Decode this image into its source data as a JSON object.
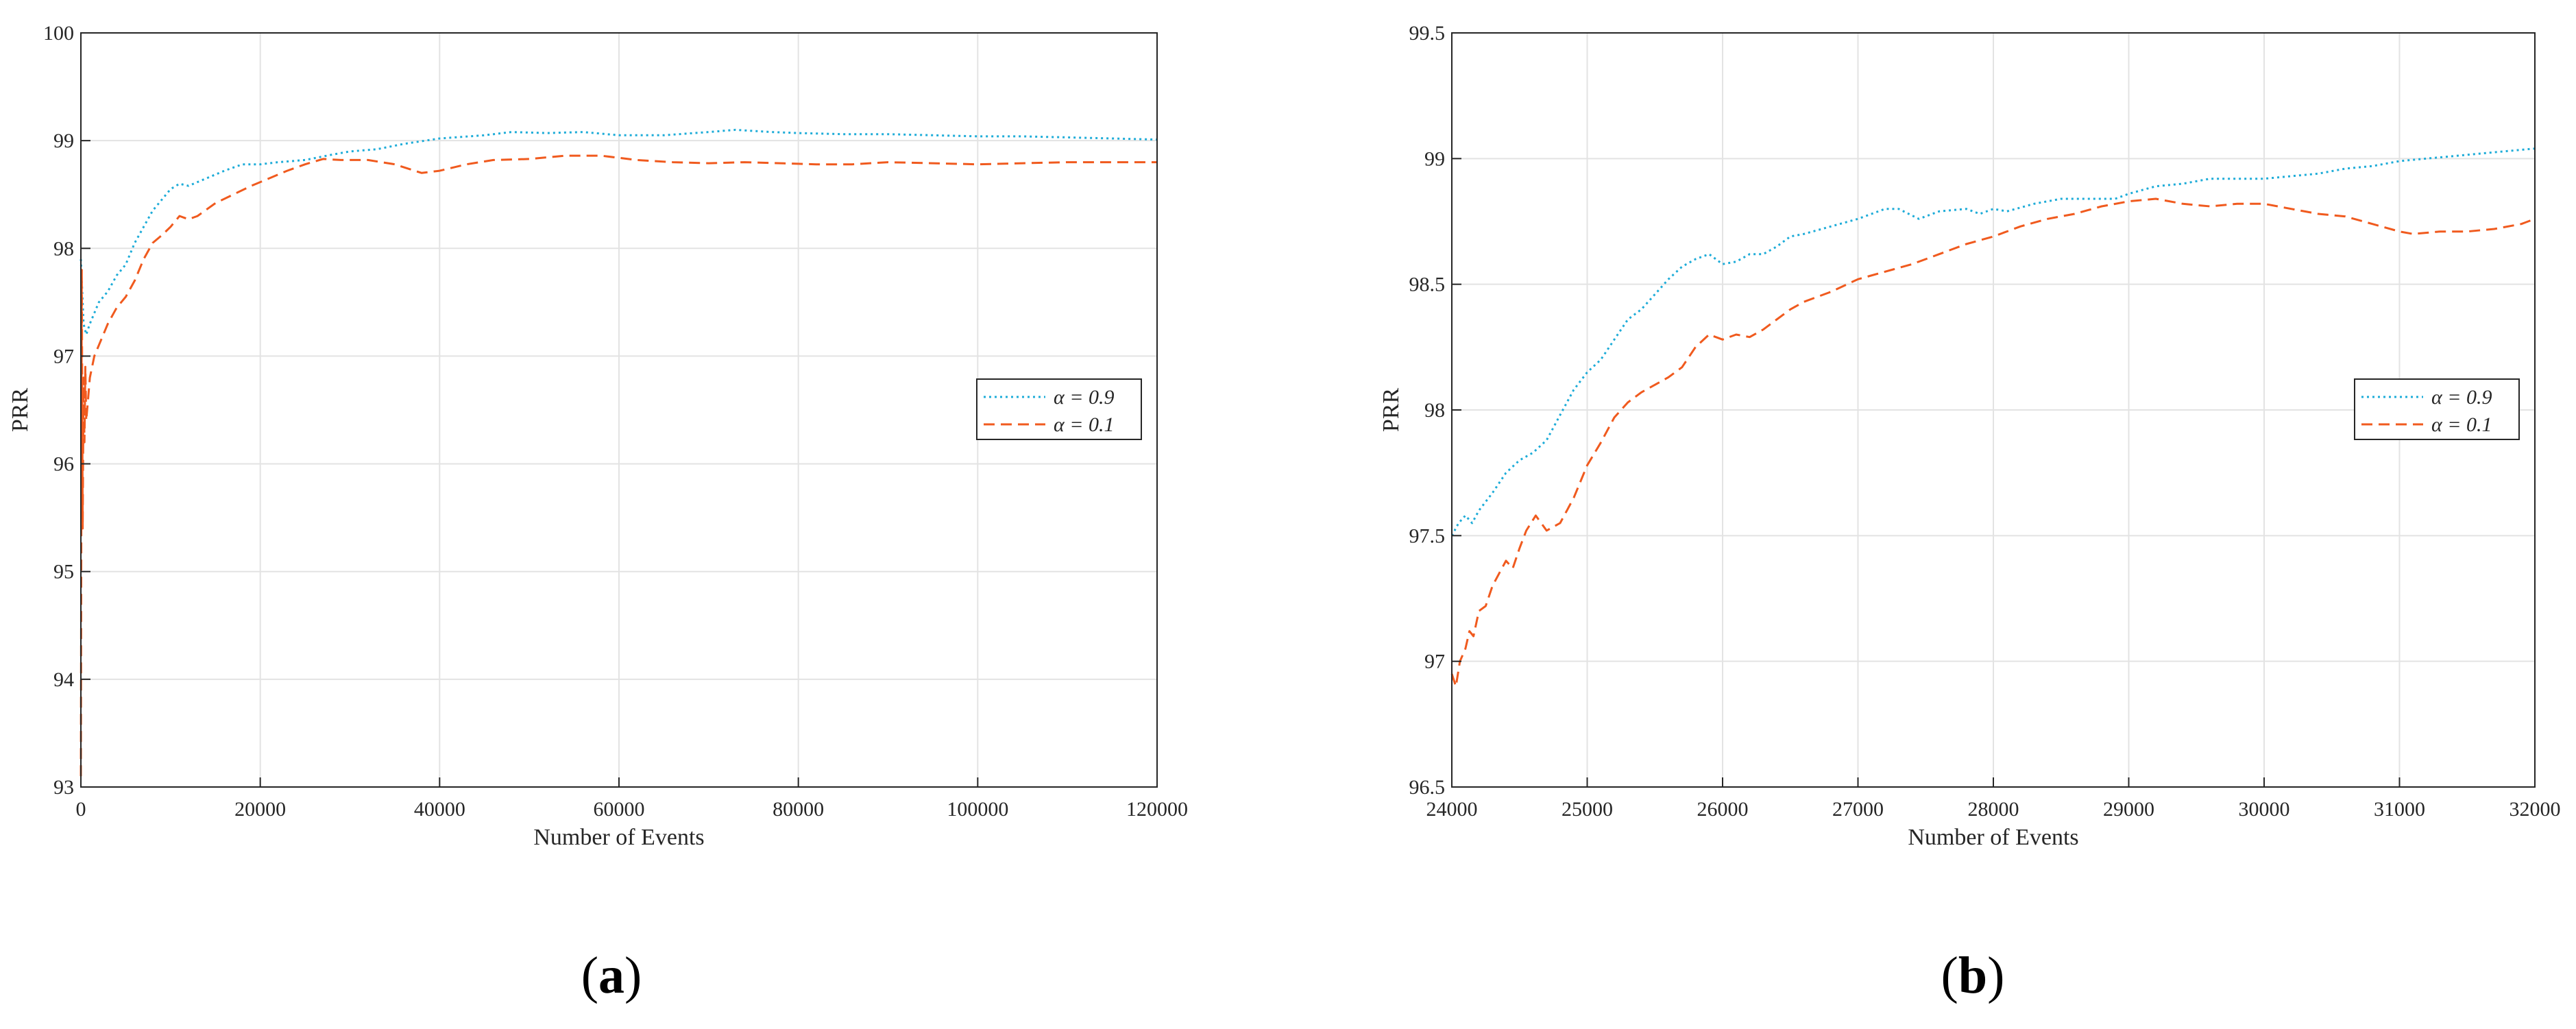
{
  "chart_data": [
    {
      "type": "line",
      "panel_label": "a",
      "xlabel": "Number of Events",
      "ylabel": "PRR",
      "xlim": [
        0,
        120000
      ],
      "ylim": [
        93,
        100
      ],
      "xticks": [
        0,
        20000,
        40000,
        60000,
        80000,
        100000,
        120000
      ],
      "yticks": [
        93,
        94,
        95,
        96,
        97,
        98,
        99,
        100
      ],
      "grid": true,
      "legend_position": "right",
      "series": [
        {
          "name": "α = 0.9",
          "color": "#1eacd8",
          "style": "dotted",
          "points": [
            [
              0,
              97.9
            ],
            [
              300,
              97.3
            ],
            [
              600,
              97.2
            ],
            [
              1000,
              97.3
            ],
            [
              2000,
              97.5
            ],
            [
              3000,
              97.6
            ],
            [
              4000,
              97.75
            ],
            [
              5000,
              97.85
            ],
            [
              6000,
              98.05
            ],
            [
              7000,
              98.2
            ],
            [
              8000,
              98.35
            ],
            [
              9000,
              98.45
            ],
            [
              10000,
              98.55
            ],
            [
              11000,
              98.6
            ],
            [
              12000,
              98.58
            ],
            [
              14000,
              98.65
            ],
            [
              16000,
              98.72
            ],
            [
              18000,
              98.78
            ],
            [
              20000,
              98.78
            ],
            [
              22000,
              98.8
            ],
            [
              25000,
              98.82
            ],
            [
              28000,
              98.87
            ],
            [
              30000,
              98.9
            ],
            [
              33000,
              98.92
            ],
            [
              36000,
              98.97
            ],
            [
              40000,
              99.02
            ],
            [
              45000,
              99.05
            ],
            [
              48000,
              99.08
            ],
            [
              52000,
              99.07
            ],
            [
              56000,
              99.08
            ],
            [
              60000,
              99.05
            ],
            [
              65000,
              99.05
            ],
            [
              70000,
              99.08
            ],
            [
              73000,
              99.1
            ],
            [
              77000,
              99.08
            ],
            [
              80000,
              99.07
            ],
            [
              85000,
              99.06
            ],
            [
              90000,
              99.06
            ],
            [
              95000,
              99.05
            ],
            [
              100000,
              99.04
            ],
            [
              105000,
              99.04
            ],
            [
              110000,
              99.03
            ],
            [
              115000,
              99.02
            ],
            [
              120000,
              99.01
            ]
          ]
        },
        {
          "name": "α = 0.1",
          "color": "#f05a1e",
          "style": "dashed",
          "points": [
            [
              0,
              93.1
            ],
            [
              100,
              97.8
            ],
            [
              200,
              95.4
            ],
            [
              300,
              96.8
            ],
            [
              400,
              96.2
            ],
            [
              500,
              96.9
            ],
            [
              600,
              96.4
            ],
            [
              800,
              96.6
            ],
            [
              1000,
              96.8
            ],
            [
              1500,
              97.0
            ],
            [
              2000,
              97.1
            ],
            [
              3000,
              97.3
            ],
            [
              4000,
              97.45
            ],
            [
              5000,
              97.55
            ],
            [
              6000,
              97.7
            ],
            [
              7000,
              97.9
            ],
            [
              8000,
              98.05
            ],
            [
              9000,
              98.12
            ],
            [
              10000,
              98.2
            ],
            [
              11000,
              98.3
            ],
            [
              12000,
              98.27
            ],
            [
              13000,
              98.3
            ],
            [
              15000,
              98.42
            ],
            [
              17000,
              98.5
            ],
            [
              19000,
              98.58
            ],
            [
              21000,
              98.65
            ],
            [
              23000,
              98.72
            ],
            [
              25000,
              98.78
            ],
            [
              27000,
              98.83
            ],
            [
              29000,
              98.82
            ],
            [
              32000,
              98.82
            ],
            [
              35000,
              98.78
            ],
            [
              38000,
              98.7
            ],
            [
              40000,
              98.72
            ],
            [
              43000,
              98.78
            ],
            [
              46000,
              98.82
            ],
            [
              50000,
              98.83
            ],
            [
              54000,
              98.86
            ],
            [
              58000,
              98.86
            ],
            [
              62000,
              98.82
            ],
            [
              66000,
              98.8
            ],
            [
              70000,
              98.79
            ],
            [
              74000,
              98.8
            ],
            [
              78000,
              98.79
            ],
            [
              82000,
              98.78
            ],
            [
              86000,
              98.78
            ],
            [
              90000,
              98.8
            ],
            [
              95000,
              98.79
            ],
            [
              100000,
              98.78
            ],
            [
              105000,
              98.79
            ],
            [
              110000,
              98.8
            ],
            [
              115000,
              98.8
            ],
            [
              120000,
              98.8
            ]
          ]
        }
      ]
    },
    {
      "type": "line",
      "panel_label": "b",
      "xlabel": "Number of Events",
      "ylabel": "PRR",
      "xlim": [
        24000,
        32000
      ],
      "ylim": [
        96.5,
        99.5
      ],
      "xticks": [
        24000,
        25000,
        26000,
        27000,
        28000,
        29000,
        30000,
        31000,
        32000
      ],
      "yticks": [
        96.5,
        97,
        97.5,
        98,
        98.5,
        99,
        99.5
      ],
      "grid": true,
      "legend_position": "right",
      "series": [
        {
          "name": "α = 0.9",
          "color": "#1eacd8",
          "style": "dotted",
          "points": [
            [
              24000,
              97.5
            ],
            [
              24050,
              97.55
            ],
            [
              24100,
              97.58
            ],
            [
              24150,
              97.55
            ],
            [
              24200,
              97.6
            ],
            [
              24300,
              97.67
            ],
            [
              24400,
              97.75
            ],
            [
              24500,
              97.8
            ],
            [
              24600,
              97.83
            ],
            [
              24700,
              97.88
            ],
            [
              24800,
              97.98
            ],
            [
              24900,
              98.08
            ],
            [
              25000,
              98.15
            ],
            [
              25100,
              98.2
            ],
            [
              25200,
              98.28
            ],
            [
              25300,
              98.36
            ],
            [
              25400,
              98.4
            ],
            [
              25500,
              98.46
            ],
            [
              25600,
              98.52
            ],
            [
              25700,
              98.57
            ],
            [
              25800,
              98.6
            ],
            [
              25900,
              98.62
            ],
            [
              26000,
              98.58
            ],
            [
              26100,
              98.59
            ],
            [
              26200,
              98.62
            ],
            [
              26300,
              98.62
            ],
            [
              26400,
              98.65
            ],
            [
              26500,
              98.69
            ],
            [
              26600,
              98.7
            ],
            [
              26800,
              98.73
            ],
            [
              27000,
              98.76
            ],
            [
              27200,
              98.8
            ],
            [
              27300,
              98.8
            ],
            [
              27450,
              98.76
            ],
            [
              27600,
              98.79
            ],
            [
              27800,
              98.8
            ],
            [
              27900,
              98.78
            ],
            [
              28000,
              98.8
            ],
            [
              28100,
              98.79
            ],
            [
              28300,
              98.82
            ],
            [
              28500,
              98.84
            ],
            [
              28700,
              98.84
            ],
            [
              28900,
              98.84
            ],
            [
              29000,
              98.86
            ],
            [
              29200,
              98.89
            ],
            [
              29400,
              98.9
            ],
            [
              29600,
              98.92
            ],
            [
              29800,
              98.92
            ],
            [
              30000,
              98.92
            ],
            [
              30200,
              98.93
            ],
            [
              30400,
              98.94
            ],
            [
              30600,
              98.96
            ],
            [
              30800,
              98.97
            ],
            [
              31000,
              98.99
            ],
            [
              31200,
              99.0
            ],
            [
              31400,
              99.01
            ],
            [
              31600,
              99.02
            ],
            [
              31800,
              99.03
            ],
            [
              32000,
              99.04
            ]
          ]
        },
        {
          "name": "α = 0.1",
          "color": "#f05a1e",
          "style": "dashed",
          "points": [
            [
              24000,
              96.95
            ],
            [
              24030,
              96.9
            ],
            [
              24060,
              97.0
            ],
            [
              24100,
              97.05
            ],
            [
              24130,
              97.12
            ],
            [
              24160,
              97.1
            ],
            [
              24200,
              97.2
            ],
            [
              24250,
              97.22
            ],
            [
              24300,
              97.3
            ],
            [
              24350,
              97.35
            ],
            [
              24400,
              97.4
            ],
            [
              24450,
              97.37
            ],
            [
              24500,
              97.45
            ],
            [
              24550,
              97.52
            ],
            [
              24620,
              97.58
            ],
            [
              24700,
              97.52
            ],
            [
              24800,
              97.55
            ],
            [
              24900,
              97.65
            ],
            [
              25000,
              97.78
            ],
            [
              25100,
              97.87
            ],
            [
              25200,
              97.97
            ],
            [
              25300,
              98.03
            ],
            [
              25400,
              98.07
            ],
            [
              25500,
              98.1
            ],
            [
              25600,
              98.13
            ],
            [
              25700,
              98.17
            ],
            [
              25800,
              98.25
            ],
            [
              25900,
              98.3
            ],
            [
              26000,
              98.28
            ],
            [
              26100,
              98.3
            ],
            [
              26200,
              98.29
            ],
            [
              26300,
              98.32
            ],
            [
              26400,
              98.36
            ],
            [
              26500,
              98.4
            ],
            [
              26600,
              98.43
            ],
            [
              26800,
              98.47
            ],
            [
              27000,
              98.52
            ],
            [
              27200,
              98.55
            ],
            [
              27400,
              98.58
            ],
            [
              27600,
              98.62
            ],
            [
              27800,
              98.66
            ],
            [
              28000,
              98.69
            ],
            [
              28200,
              98.73
            ],
            [
              28400,
              98.76
            ],
            [
              28600,
              98.78
            ],
            [
              28800,
              98.81
            ],
            [
              29000,
              98.83
            ],
            [
              29200,
              98.84
            ],
            [
              29400,
              98.82
            ],
            [
              29600,
              98.81
            ],
            [
              29800,
              98.82
            ],
            [
              30000,
              98.82
            ],
            [
              30200,
              98.8
            ],
            [
              30400,
              98.78
            ],
            [
              30600,
              98.77
            ],
            [
              30800,
              98.74
            ],
            [
              31000,
              98.71
            ],
            [
              31100,
              98.7
            ],
            [
              31300,
              98.71
            ],
            [
              31500,
              98.71
            ],
            [
              31700,
              98.72
            ],
            [
              31900,
              98.74
            ],
            [
              32000,
              98.76
            ]
          ]
        }
      ]
    }
  ]
}
